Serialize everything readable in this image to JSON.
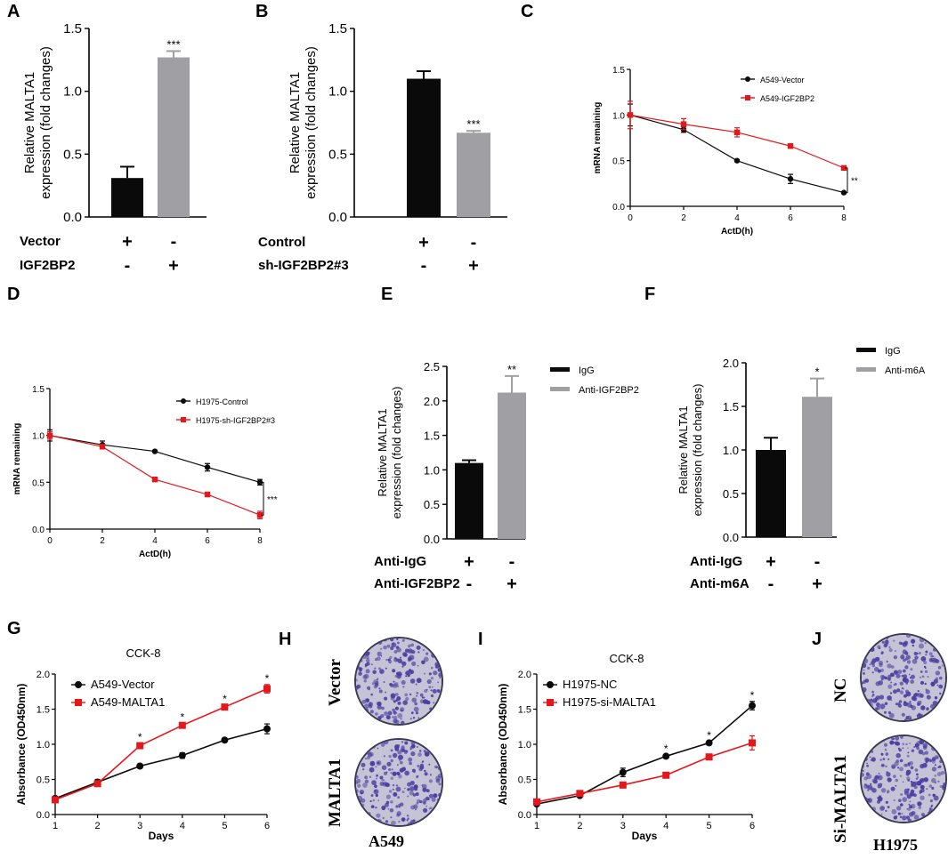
{
  "colors": {
    "black_bar": "#0a0a0a",
    "gray_bar": "#a0a0a4",
    "red": "#e5171b",
    "black": "#1a1a1a",
    "crystal_violet": "#4a3fa0",
    "dish_bg": "#c7c3d6"
  },
  "panel_letters": [
    "A",
    "B",
    "C",
    "D",
    "E",
    "F",
    "G",
    "H",
    "I",
    "J"
  ],
  "chart_data": [
    {
      "id": "A",
      "type": "bar",
      "ylabel_lines": [
        "Relative MALTA1",
        "expression (fold changes)"
      ],
      "ylim": [
        0,
        1.5
      ],
      "yticks": [
        "0.0",
        "0.5",
        "1.0",
        "1.5"
      ],
      "categories": [
        "Vector-group",
        "IGF2BP2-group"
      ],
      "values": [
        0.31,
        1.27
      ],
      "errors": [
        0.09,
        0.05
      ],
      "bar_colors": [
        "black",
        "gray"
      ],
      "significance": [
        null,
        "***"
      ],
      "condition_rows": [
        {
          "label": "Vector",
          "marks": [
            "+",
            "-"
          ]
        },
        {
          "label": "IGF2BP2",
          "marks": [
            "-",
            "+"
          ]
        }
      ]
    },
    {
      "id": "B",
      "type": "bar",
      "ylabel_lines": [
        "Relative MALTA1",
        "expression (fold changes)"
      ],
      "ylim": [
        0,
        1.5
      ],
      "yticks": [
        "0.0",
        "0.5",
        "1.0",
        "1.5"
      ],
      "categories": [
        "Control-group",
        "sh-group"
      ],
      "values": [
        1.1,
        0.67
      ],
      "errors": [
        0.06,
        0.015
      ],
      "bar_colors": [
        "black",
        "gray"
      ],
      "significance": [
        null,
        "***"
      ],
      "condition_rows": [
        {
          "label": "Control",
          "marks": [
            "+",
            "-"
          ]
        },
        {
          "label": "sh-IGF2BP2#3",
          "marks": [
            "-",
            "+"
          ]
        }
      ]
    },
    {
      "id": "C",
      "type": "line",
      "xlabel": "ActD(h)",
      "ylabel": "mRNA remaining",
      "x": [
        0,
        2,
        4,
        6,
        8
      ],
      "xlim": [
        0,
        8
      ],
      "ylim": [
        0,
        1.5
      ],
      "xticks": [
        "0",
        "2",
        "4",
        "6",
        "8"
      ],
      "yticks": [
        "0.0",
        "0.5",
        "1.0",
        "1.5"
      ],
      "series": [
        {
          "name": "A549-Vector",
          "color": "black",
          "marker": "circle",
          "values": [
            1.0,
            0.84,
            0.5,
            0.3,
            0.15
          ],
          "errors": [
            0.12,
            0.03,
            0.01,
            0.05,
            0.01
          ]
        },
        {
          "name": "A549-IGF2BP2",
          "color": "red",
          "marker": "square",
          "values": [
            1.0,
            0.9,
            0.81,
            0.66,
            0.42
          ],
          "errors": [
            0.15,
            0.06,
            0.05,
            0.01,
            0.01
          ]
        }
      ],
      "bracket_label": "**"
    },
    {
      "id": "D",
      "type": "line",
      "xlabel": "ActD(h)",
      "ylabel": "mRNA remaining",
      "x": [
        0,
        2,
        4,
        6,
        8
      ],
      "xlim": [
        0,
        8
      ],
      "ylim": [
        0,
        1.5
      ],
      "xticks": [
        "0",
        "2",
        "4",
        "6",
        "8"
      ],
      "yticks": [
        "0.0",
        "0.5",
        "1.0",
        "1.5"
      ],
      "series": [
        {
          "name": "H1975-Control",
          "color": "black",
          "marker": "circle",
          "values": [
            1.0,
            0.9,
            0.83,
            0.66,
            0.5
          ],
          "errors": [
            0.06,
            0.04,
            0.01,
            0.04,
            0.03
          ]
        },
        {
          "name": "H1975-sh-IGF2BP2#3",
          "color": "red",
          "marker": "square",
          "values": [
            1.0,
            0.88,
            0.53,
            0.37,
            0.15
          ],
          "errors": [
            0.04,
            0.02,
            0.01,
            0.01,
            0.04
          ]
        }
      ],
      "bracket_label": "***"
    },
    {
      "id": "E",
      "type": "bar",
      "ylabel_lines": [
        "Relative MALTA1",
        "expression (fold changes)"
      ],
      "ylim": [
        0,
        2.5
      ],
      "yticks": [
        "0.0",
        "0.5",
        "1.0",
        "1.5",
        "2.0",
        "2.5"
      ],
      "categories": [
        "IgG-group",
        "Anti-IGF2BP2-group"
      ],
      "values": [
        1.1,
        2.12
      ],
      "errors": [
        0.04,
        0.24
      ],
      "bar_colors": [
        "black",
        "gray"
      ],
      "significance": [
        null,
        "**"
      ],
      "legend": [
        {
          "name": "IgG",
          "color": "black"
        },
        {
          "name": "Anti-IGF2BP2",
          "color": "gray"
        }
      ],
      "condition_rows": [
        {
          "label": "Anti-IgG",
          "marks": [
            "+",
            "-"
          ]
        },
        {
          "label": "Anti-IGF2BP2",
          "marks": [
            "-",
            "+"
          ]
        }
      ]
    },
    {
      "id": "F",
      "type": "bar",
      "ylabel_lines": [
        "Relative MALTA1",
        "expression (fold changes)"
      ],
      "ylim": [
        0,
        2.0
      ],
      "yticks": [
        "0.0",
        "0.5",
        "1.0",
        "1.5",
        "2.0"
      ],
      "categories": [
        "IgG-group",
        "Anti-m6A-group"
      ],
      "values": [
        1.0,
        1.61
      ],
      "errors": [
        0.14,
        0.21
      ],
      "bar_colors": [
        "black",
        "gray"
      ],
      "significance": [
        null,
        "*"
      ],
      "legend": [
        {
          "name": "IgG",
          "color": "black"
        },
        {
          "name": "Anti-m6A",
          "color": "gray"
        }
      ],
      "condition_rows": [
        {
          "label": "Anti-IgG",
          "marks": [
            "+",
            "-"
          ]
        },
        {
          "label": "Anti-m6A",
          "marks": [
            "-",
            "+"
          ]
        }
      ]
    },
    {
      "id": "G",
      "type": "line",
      "title": "CCK-8",
      "xlabel": "Days",
      "ylabel": "Absorbance (OD450nm)",
      "x": [
        1,
        2,
        3,
        4,
        5,
        6
      ],
      "xlim": [
        1,
        6
      ],
      "ylim": [
        0,
        2.0
      ],
      "xticks": [
        "1",
        "2",
        "3",
        "4",
        "5",
        "6"
      ],
      "yticks": [
        "0.0",
        "0.5",
        "1.0",
        "1.5",
        "2.0"
      ],
      "series": [
        {
          "name": "A549-Vector",
          "color": "black",
          "marker": "circle",
          "values": [
            0.23,
            0.46,
            0.69,
            0.84,
            1.06,
            1.22
          ],
          "errors": [
            0.02,
            0.04,
            0.02,
            0.04,
            0.02,
            0.07
          ]
        },
        {
          "name": "A549-MALTA1",
          "color": "red",
          "marker": "square",
          "values": [
            0.21,
            0.44,
            0.98,
            1.27,
            1.53,
            1.79
          ],
          "errors": [
            0.02,
            0.02,
            0.03,
            0.03,
            0.03,
            0.06
          ]
        }
      ],
      "point_labels": [
        "",
        "",
        "*",
        "*",
        "*",
        "*"
      ]
    },
    {
      "id": "I",
      "type": "line",
      "title": "CCK-8",
      "xlabel": "Days",
      "ylabel": "Absorbance (OD450nm)",
      "x": [
        1,
        2,
        3,
        4,
        5,
        6
      ],
      "xlim": [
        1,
        6
      ],
      "ylim": [
        0,
        2.0
      ],
      "xticks": [
        "1",
        "2",
        "3",
        "4",
        "5",
        "6"
      ],
      "yticks": [
        "0.0",
        "0.5",
        "1.0",
        "1.5",
        "2.0"
      ],
      "series": [
        {
          "name": "H1975-NC",
          "color": "black",
          "marker": "circle",
          "values": [
            0.15,
            0.27,
            0.6,
            0.83,
            1.02,
            1.55
          ],
          "errors": [
            0.01,
            0.02,
            0.06,
            0.02,
            0.02,
            0.06
          ]
        },
        {
          "name": "H1975-si-MALTA1",
          "color": "red",
          "marker": "square",
          "values": [
            0.18,
            0.3,
            0.42,
            0.56,
            0.82,
            1.02
          ],
          "errors": [
            0.01,
            0.02,
            0.02,
            0.03,
            0.03,
            0.1
          ]
        }
      ],
      "point_labels": [
        "",
        "",
        "",
        "*",
        "*",
        "*"
      ]
    }
  ],
  "dish_panels": {
    "H": {
      "top_label": "Vector",
      "bottom_label": "MALTA1",
      "cell_line": "A549"
    },
    "J": {
      "top_label": "NC",
      "bottom_label": "Si-MALTA1",
      "cell_line": "H1975"
    }
  }
}
